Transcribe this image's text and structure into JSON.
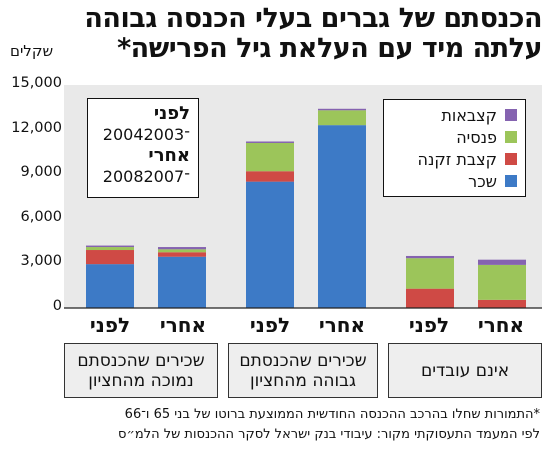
{
  "title_line1": "הכנסתם של גברים בעלי הכנסה גבוהה",
  "title_line2": "עלתה מיד עם העלאת גיל הפרישה*",
  "chart_data": {
    "type": "bar",
    "stacked": true,
    "ylabel": "שקלים",
    "ylim": [
      0,
      15000
    ],
    "yticks": [
      "0",
      "3,000",
      "6,000",
      "9,000",
      "12,000",
      "15,000"
    ],
    "ytick_values": [
      0,
      3000,
      6000,
      9000,
      12000,
      15000
    ],
    "categories": [
      "לפני",
      "אחרי",
      "לפני",
      "אחרי",
      "לפני",
      "אחרי"
    ],
    "series": [
      {
        "name": "שכר",
        "color": "#3d7ac6",
        "values": [
          2950,
          3450,
          8500,
          12300,
          0,
          0
        ]
      },
      {
        "name": "קצבת זקנה",
        "color": "#cf4a45",
        "values": [
          950,
          300,
          700,
          0,
          1300,
          550
        ]
      },
      {
        "name": "פנסיה",
        "color": "#9cc55a",
        "values": [
          200,
          200,
          1900,
          1000,
          2050,
          2350
        ]
      },
      {
        "name": "קצבאות",
        "color": "#8563b0",
        "values": [
          100,
          150,
          100,
          100,
          150,
          350
        ]
      }
    ],
    "groups": [
      "שכירים שהכנסתם נמוכה מהחציון",
      "שכירים שהכנסתם גבוהה מהחציון",
      "אינם עובדים"
    ],
    "legend_position": "top-right"
  },
  "period_box": {
    "before_label": "לפני",
    "before_years": "2004־2003",
    "after_label": "אחרי",
    "after_years": "2008־2007"
  },
  "footnote1": "*התמורות שחלו בהרכב ההכנסה החודשית הממוצעת ברוטו של בני 65 ו־66",
  "footnote2": "לפי המעמד התעסוקתי מקור: עיבודי בנק ישראל לסקר ההכנסות של הלמ״ס",
  "colors": {
    "background": "#ffffff",
    "plot_background": "#e9e9e9",
    "group_background": "#eeeeee"
  }
}
